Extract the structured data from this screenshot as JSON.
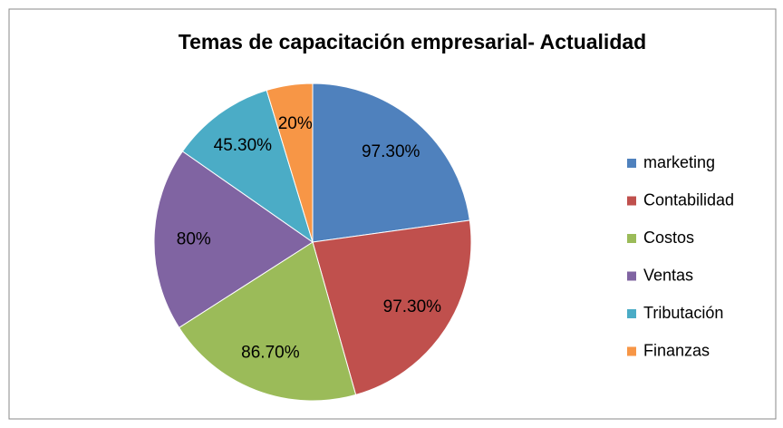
{
  "chart_data": {
    "type": "pie",
    "title": "Temas de capacitación empresarial- Actualidad",
    "categories": [
      "marketing",
      "Contabilidad",
      "Costos",
      "Ventas",
      "Tributación",
      "Finanzas"
    ],
    "values": [
      97.3,
      97.3,
      86.7,
      80,
      45.3,
      20
    ],
    "value_labels": [
      "97.30%",
      "97.30%",
      "86.70%",
      "80%",
      "45.30%",
      "20%"
    ],
    "colors": [
      "#4f81bd",
      "#c0504d",
      "#9bbb59",
      "#8064a2",
      "#4bacc6",
      "#f79646"
    ],
    "legend": "right"
  }
}
